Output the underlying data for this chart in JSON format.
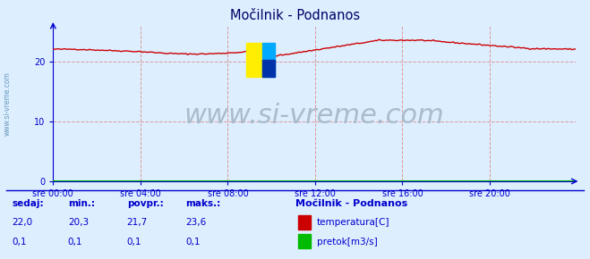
{
  "title": "Močilnik - Podnanos",
  "background_color": "#ddeeff",
  "plot_bg_color": "#ddeeff",
  "line_color_temp": "#cc0000",
  "line_color_flow": "#00bb00",
  "x_labels": [
    "sre 00:00",
    "sre 04:00",
    "sre 08:00",
    "sre 12:00",
    "sre 16:00",
    "sre 20:00"
  ],
  "y_ticks": [
    0,
    10,
    20
  ],
  "y_min": 0,
  "y_max": 26,
  "grid_color": "#dd9999",
  "title_color": "#000066",
  "axis_color": "#0000cc",
  "tick_color": "#0000cc",
  "watermark_text": "www.si-vreme.com",
  "watermark_color": "#aabbcc",
  "watermark_fontsize": 22,
  "bottom_label_color": "#0000cc",
  "legend_title": "Močilnik - Podnanos",
  "stats_headers": [
    "sedaj:",
    "min.:",
    "povpr.:",
    "maks.:"
  ],
  "stats_temp": [
    "22,0",
    "20,3",
    "21,7",
    "23,6"
  ],
  "stats_flow": [
    "0,1",
    "0,1",
    "0,1",
    "0,1"
  ],
  "temp_label": "temperatura[C]",
  "flow_label": "pretok[m3/s]",
  "n_points": 288,
  "sidewater_text": "www.si-vreme.com",
  "sidewater_color": "#6699bb"
}
